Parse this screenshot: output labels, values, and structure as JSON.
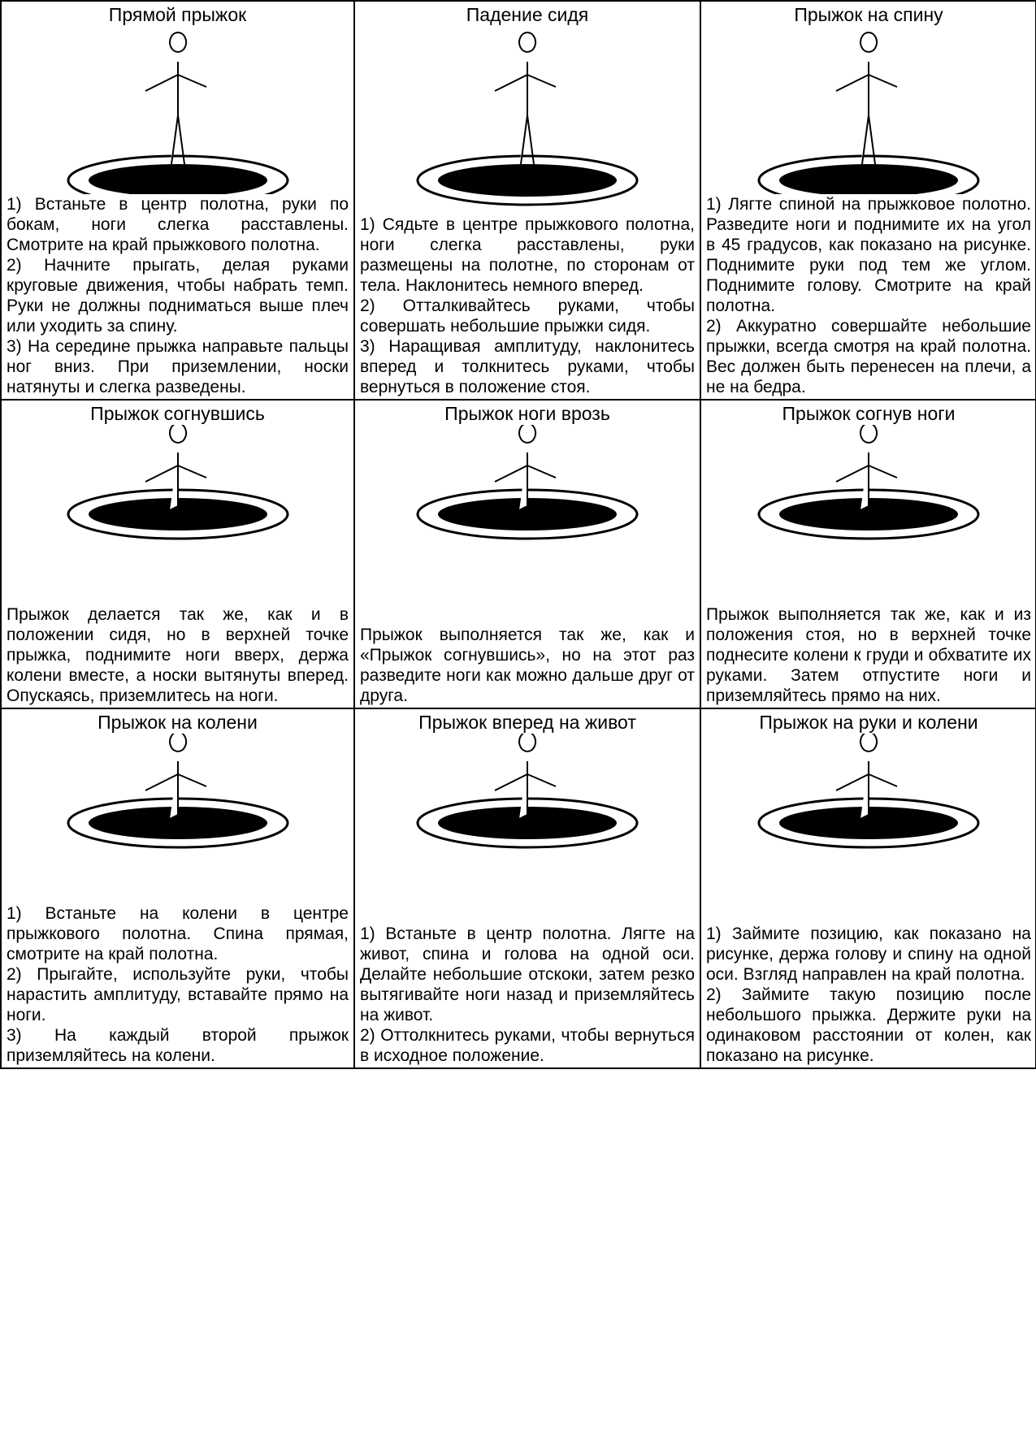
{
  "cells": [
    {
      "title": "Прямой прыжок",
      "paragraphs": [
        "1) Встаньте в центр полотна, руки по бокам, ноги слегка расставлены. Смотрите на край прыжкового полотна.",
        "2) Начните прыгать, делая руками круговые движения, чтобы набрать темп. Руки не должны подниматься выше плеч или уходить за спину.",
        "3) На середине прыжка направьте пальцы ног вниз. При приземлении, носки натянуты и слегка разведены."
      ]
    },
    {
      "title": "Падение сидя",
      "paragraphs": [
        "1) Сядьте в центре прыжкового полотна, ноги слегка расставлены, руки размещены на полотне, по сторонам от тела. Наклонитесь немного вперед.",
        "2) Отталкивайтесь руками, чтобы совершать небольшие прыжки сидя.",
        "3) Наращивая амплитуду, наклонитесь вперед и толкнитесь руками, чтобы вернуться в положение стоя."
      ]
    },
    {
      "title": "Прыжок на спину",
      "paragraphs": [
        "1) Лягте спиной на прыжковое полотно. Разведите ноги и поднимите их на угол в 45 градусов, как показано на рисунке. Поднимите руки под тем же углом. Поднимите голову. Смотрите на край полотна.",
        "2) Аккуратно совершайте небольшие прыжки, всегда смотря на край полотна. Вес должен быть перенесен на плечи, а не на бедра."
      ]
    },
    {
      "title": "Прыжок согнувшись",
      "paragraphs": [
        "Прыжок делается так же, как и в положении сидя, но в верхней точке прыжка, поднимите ноги вверх, держа колени вместе, а носки вытянуты вперед. Опускаясь, приземлитесь на ноги."
      ]
    },
    {
      "title": "Прыжок ноги врозь",
      "paragraphs": [
        "Прыжок выполняется так же, как и «Прыжок согнувшись», но на этот раз разведите ноги как можно дальше друг от друга."
      ]
    },
    {
      "title": "Прыжок согнув ноги",
      "paragraphs": [
        "Прыжок выполняется так же, как и из положения стоя, но в верхней точке поднесите колени к груди и обхватите их руками. Затем отпустите ноги и приземляйтесь прямо на них."
      ]
    },
    {
      "title": "Прыжок на колени",
      "paragraphs": [
        "1) Встаньте на колени в центре прыжкового полотна. Спина прямая, смотрите на край полотна.",
        "2) Прыгайте, используйте руки, чтобы нарастить амплитуду, вставайте прямо на ноги.",
        "3) На каждый второй прыжок приземляйтесь на колени."
      ]
    },
    {
      "title": "Прыжок вперед на живот",
      "paragraphs": [
        "1) Встаньте в центр полотна. Лягте на живот, спина и голова на одной оси. Делайте небольшие отскоки, затем резко вытягивайте ноги назад и приземляйтесь на живот.",
        "2) Оттолкнитесь руками, чтобы вернуться в исходное положение."
      ]
    },
    {
      "title": "Прыжок на руки и колени",
      "paragraphs": [
        "1) Займите позицию, как показано на рисунке, держа голову и спину на одной оси. Взгляд направлен на край полотна.",
        "2) Займите такую позицию после небольшого прыжка. Держите руки на одинаковом расстоянии от колен, как показано на рисунке."
      ]
    }
  ]
}
